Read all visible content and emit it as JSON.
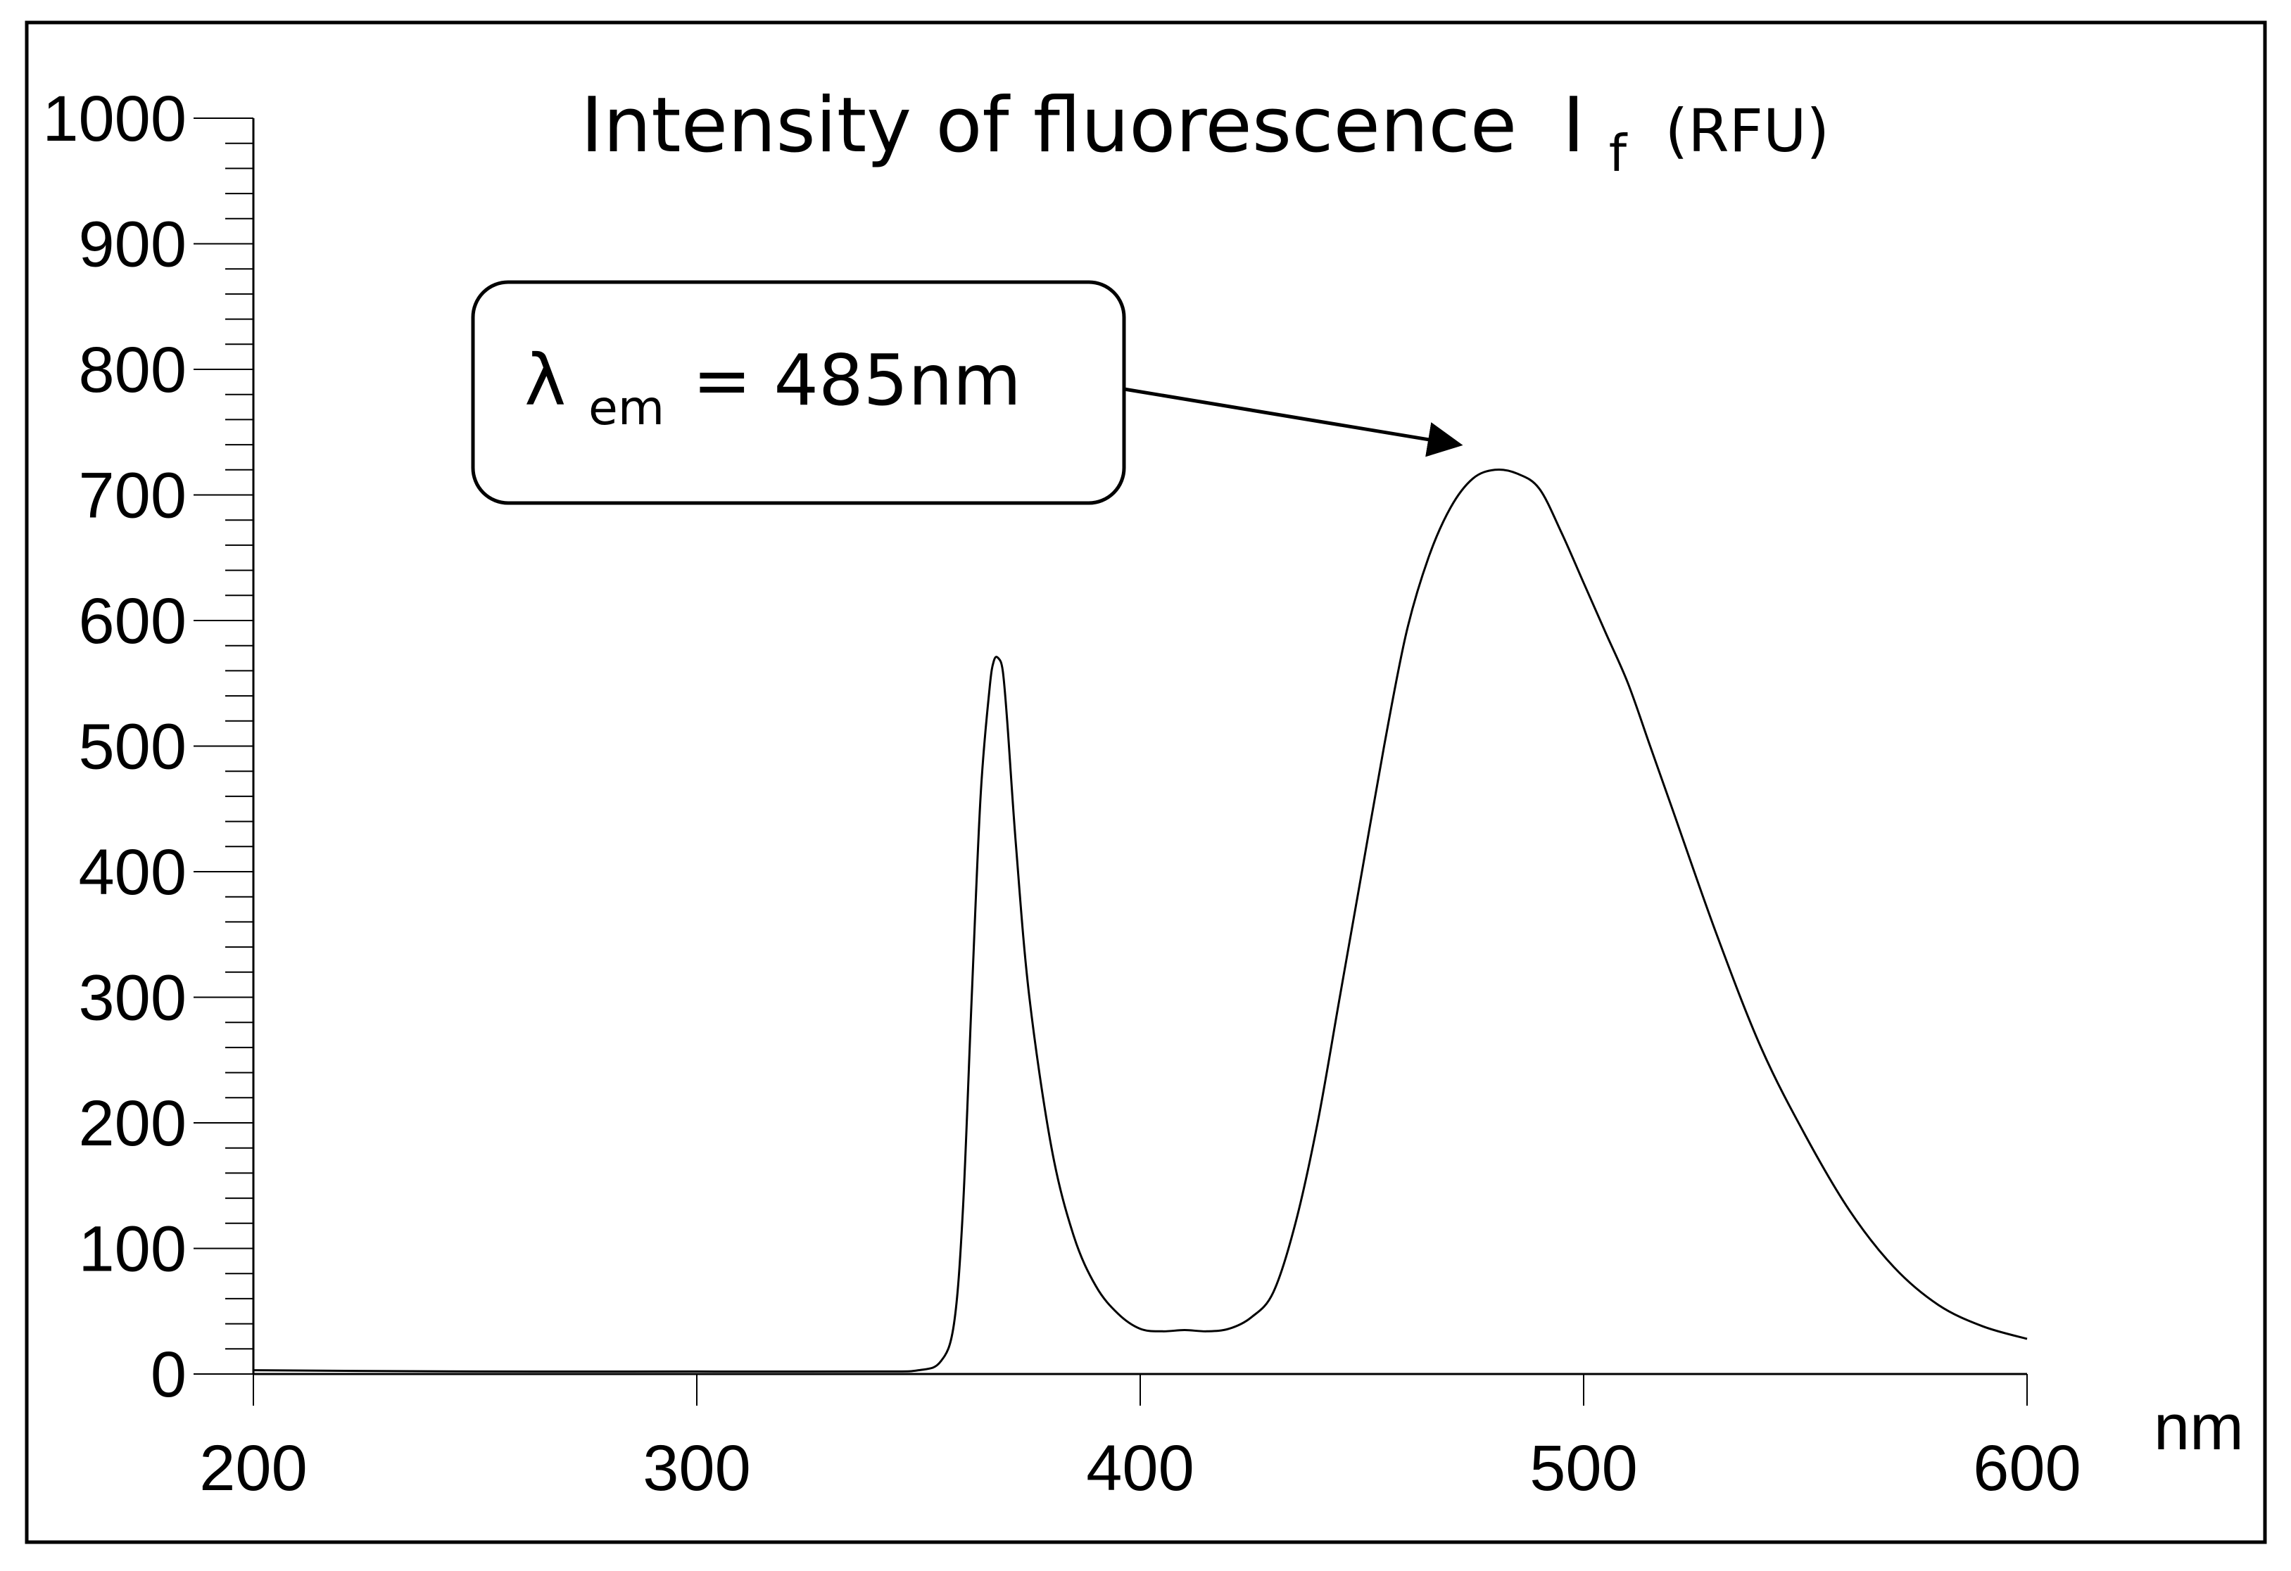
{
  "chart_data": {
    "type": "line",
    "title": {
      "main": "Intensity of fluorescence",
      "symbol": "I",
      "symbol_sub": "f",
      "unit": "(RFU)"
    },
    "xlabel": "nm",
    "ylabel": "",
    "xlim": [
      200,
      600
    ],
    "ylim": [
      0,
      1000
    ],
    "x_ticks": [
      200,
      300,
      400,
      500,
      600
    ],
    "y_ticks": [
      0,
      100,
      200,
      300,
      400,
      500,
      600,
      700,
      800,
      900,
      1000
    ],
    "grid": false,
    "annotation": {
      "symbol": "λ",
      "sub": "em",
      "value_text": "= 485nm",
      "arrow_to": [
        472,
        740
      ]
    },
    "series": [
      {
        "x": [
          200,
          250,
          300,
          340,
          350,
          355,
          358,
          360,
          362,
          364,
          366,
          367,
          368,
          369,
          370,
          372,
          375,
          380,
          385,
          390,
          395,
          400,
          405,
          410,
          415,
          420,
          425,
          430,
          435,
          440,
          445,
          450,
          455,
          460,
          465,
          470,
          475,
          480,
          485,
          490,
          495,
          500,
          505,
          510,
          515,
          520,
          530,
          540,
          550,
          560,
          570,
          580,
          590,
          600
        ],
        "y": [
          3,
          2,
          2,
          2,
          3,
          10,
          40,
          130,
          300,
          460,
          545,
          568,
          570,
          560,
          520,
          420,
          300,
          180,
          110,
          70,
          48,
          36,
          34,
          35,
          34,
          36,
          45,
          65,
          120,
          200,
          300,
          400,
          500,
          590,
          650,
          690,
          713,
          720,
          717,
          705,
          670,
          630,
          590,
          550,
          500,
          450,
          350,
          260,
          190,
          130,
          85,
          55,
          38,
          28
        ]
      }
    ]
  }
}
